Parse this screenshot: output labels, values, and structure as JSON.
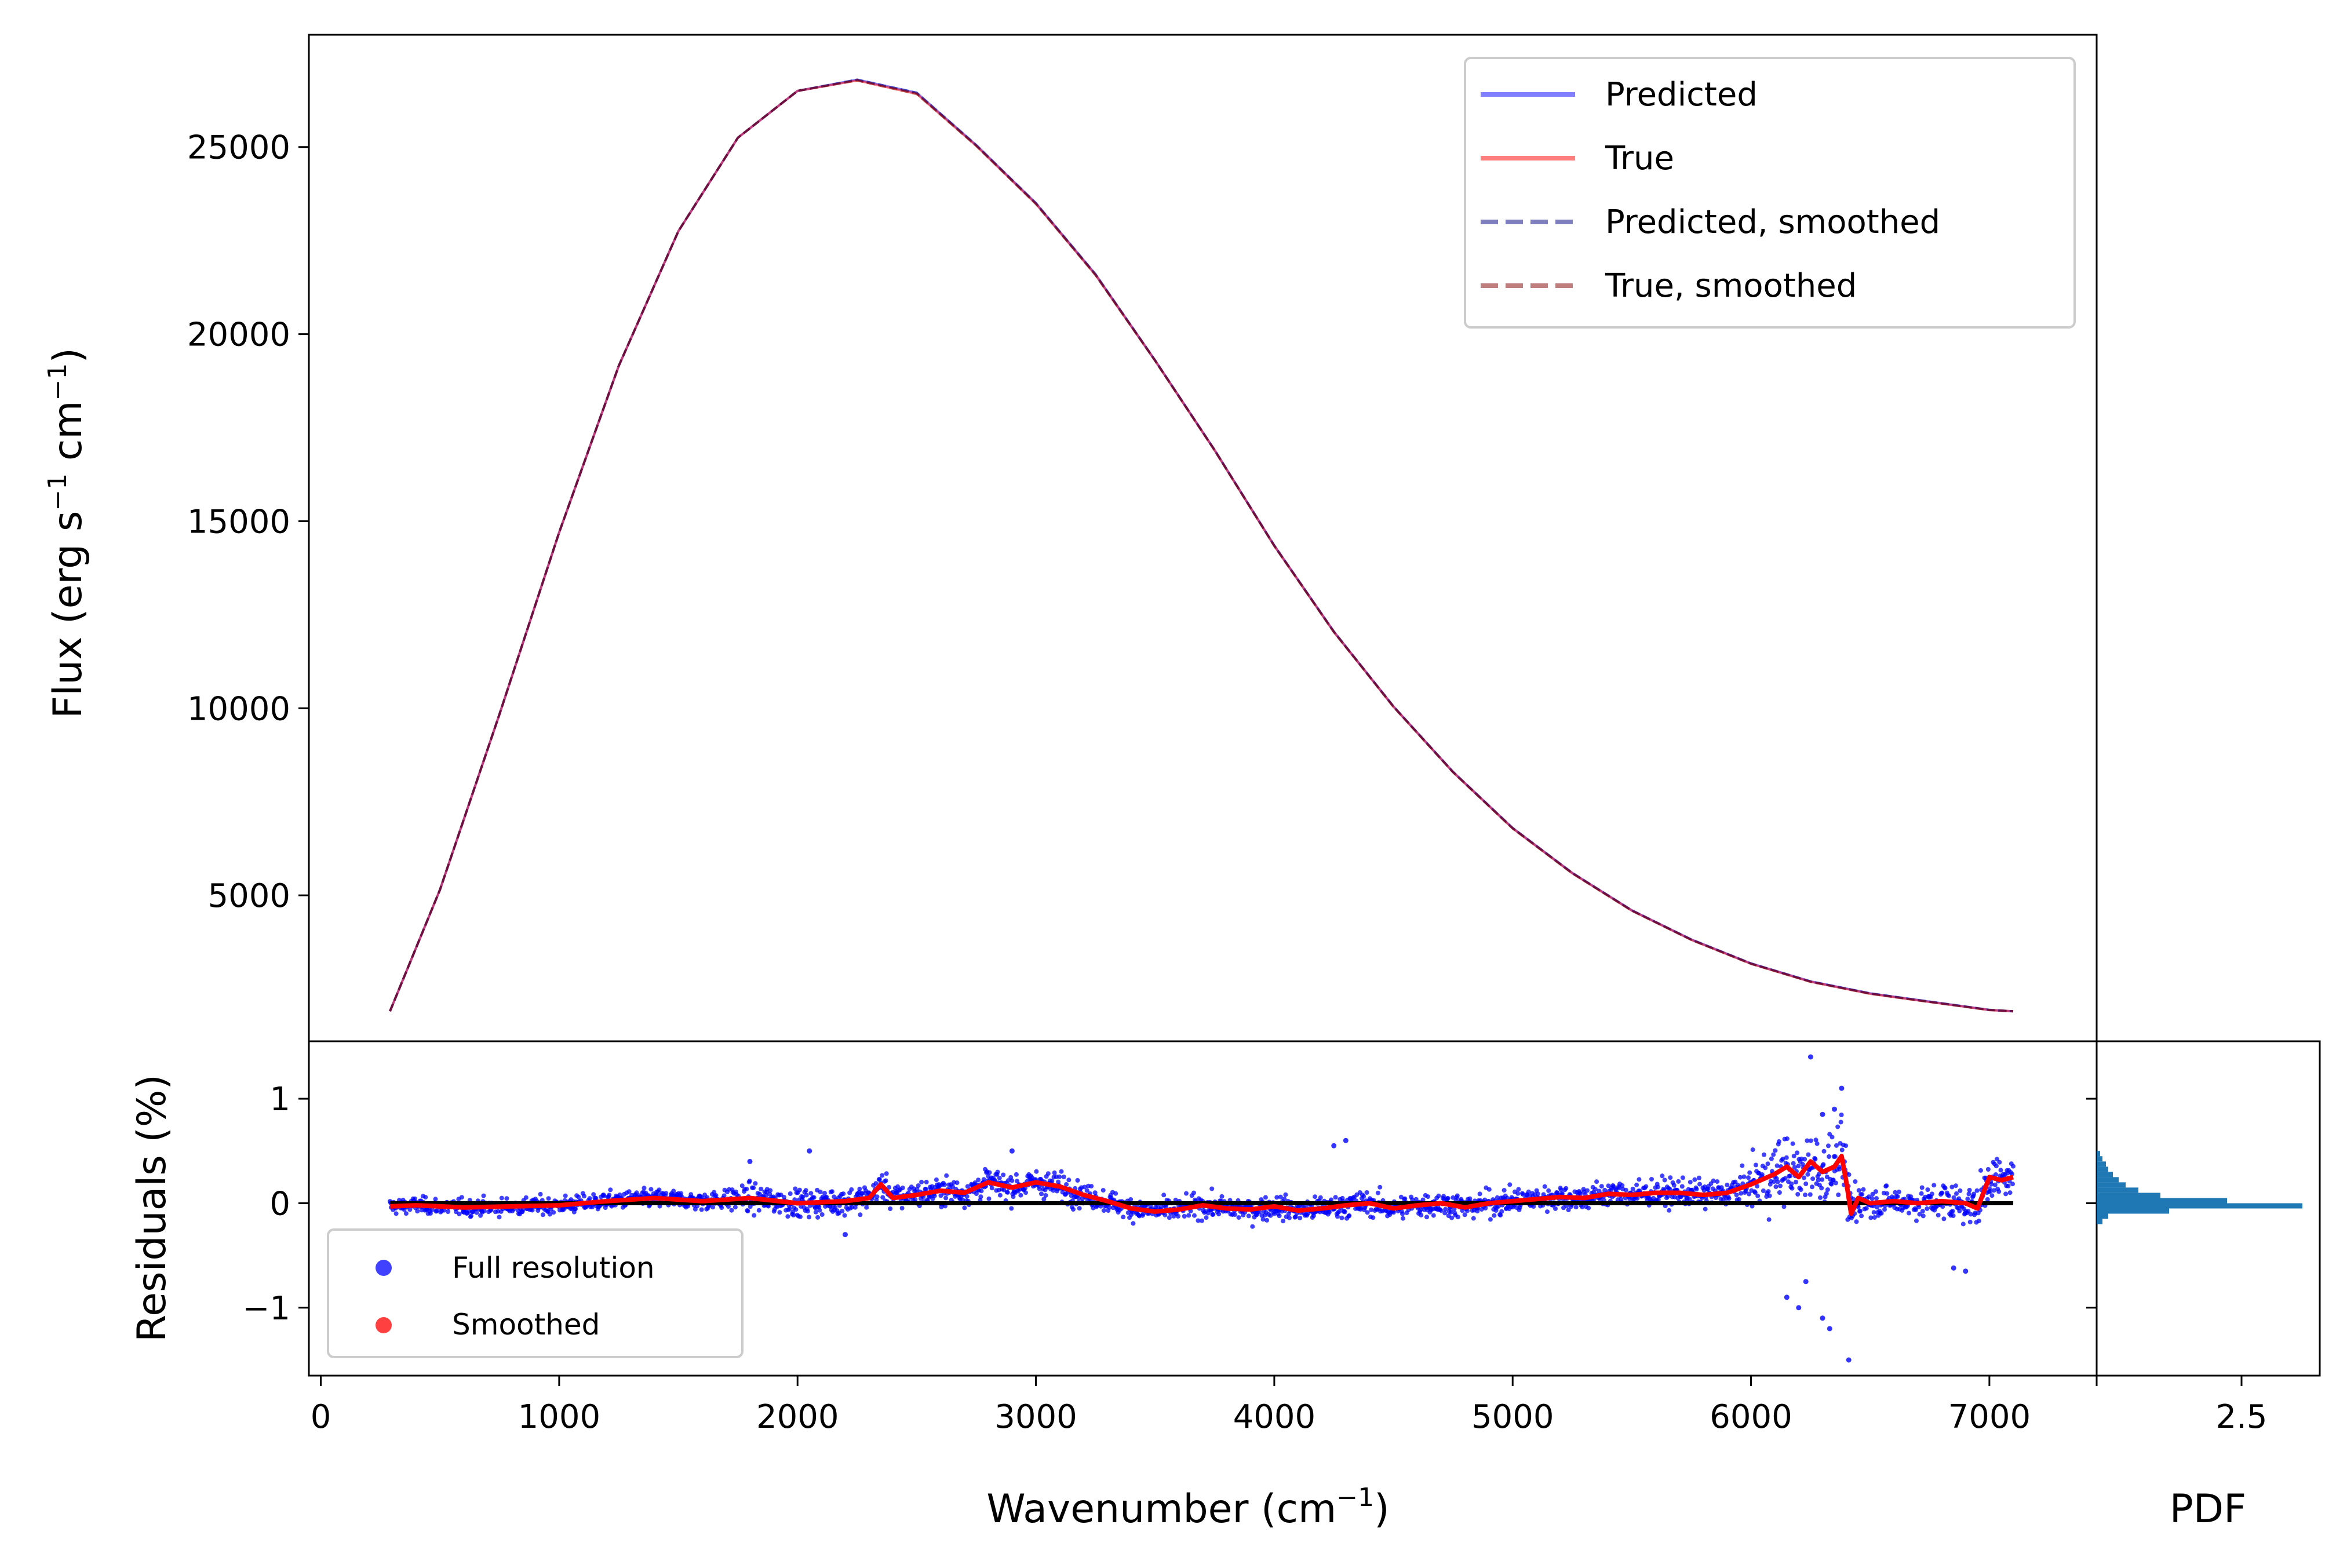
{
  "chart_data": [
    {
      "type": "line",
      "panel": "spectrum",
      "ylabel": "Flux (erg s⁻¹ cm⁻¹)",
      "ylabel_parts": {
        "a": "Flux (erg s",
        "sup1": "−1",
        "b": " cm",
        "sup2": "−1",
        "c": ")"
      },
      "xlim": [
        -50,
        7450
      ],
      "ylim": [
        1100,
        28000
      ],
      "yticks": [
        5000,
        10000,
        15000,
        20000,
        25000
      ],
      "ytick_labels": [
        "5000",
        "10000",
        "15000",
        "20000",
        "25000"
      ],
      "x": [
        290,
        500,
        750,
        1000,
        1250,
        1500,
        1750,
        2000,
        2250,
        2500,
        2750,
        3000,
        3250,
        3500,
        3750,
        4000,
        4250,
        4500,
        4750,
        5000,
        5250,
        5500,
        5750,
        6000,
        6250,
        6500,
        6750,
        7000,
        7100
      ],
      "series": [
        {
          "name": "Predicted",
          "color": "#0000ff",
          "alpha": 0.5,
          "dash": "solid",
          "values": [
            1900,
            5150,
            9850,
            14700,
            19150,
            22750,
            25250,
            26500,
            26800,
            26450,
            25050,
            23500,
            21600,
            19300,
            16900,
            14350,
            12050,
            10050,
            8300,
            6800,
            5600,
            4600,
            3820,
            3180,
            2700,
            2380,
            2160,
            1940,
            1900
          ]
        },
        {
          "name": "True",
          "color": "#ff0000",
          "alpha": 0.5,
          "dash": "solid",
          "values": [
            1900,
            5150,
            9850,
            14700,
            19150,
            22750,
            25250,
            26500,
            26780,
            26420,
            25030,
            23480,
            21580,
            19290,
            16890,
            14340,
            12040,
            10040,
            8290,
            6790,
            5590,
            4590,
            3810,
            3170,
            2690,
            2370,
            2150,
            1935,
            1900
          ]
        },
        {
          "name": "Predicted, smoothed",
          "color": "#000080",
          "alpha": 0.5,
          "dash": "dashed",
          "values": [
            1900,
            5150,
            9850,
            14700,
            19150,
            22750,
            25250,
            26500,
            26800,
            26450,
            25050,
            23500,
            21600,
            19300,
            16900,
            14350,
            12050,
            10050,
            8300,
            6800,
            5600,
            4600,
            3820,
            3180,
            2700,
            2380,
            2160,
            1940,
            1900
          ]
        },
        {
          "name": "True, smoothed",
          "color": "#800000",
          "alpha": 0.5,
          "dash": "dashed",
          "values": [
            1900,
            5150,
            9850,
            14700,
            19150,
            22750,
            25250,
            26500,
            26780,
            26420,
            25030,
            23480,
            21580,
            19290,
            16890,
            14340,
            12040,
            10040,
            8290,
            6790,
            5590,
            4590,
            3810,
            3170,
            2690,
            2370,
            2150,
            1935,
            1900
          ]
        }
      ],
      "legend": [
        "Predicted",
        "True",
        "Predicted, smoothed",
        "True, smoothed"
      ],
      "legend_loc": "upper right"
    },
    {
      "type": "scatter",
      "panel": "residuals",
      "xlabel": "Wavenumber (cm⁻¹)",
      "xlabel_parts": {
        "a": "Wavenumber (cm",
        "sup": "−1",
        "b": ")"
      },
      "ylabel": "Residuals (%)",
      "xlim": [
        -50,
        7450
      ],
      "ylim": [
        -1.65,
        1.55
      ],
      "xticks": [
        0,
        1000,
        2000,
        3000,
        4000,
        5000,
        6000,
        7000
      ],
      "xtick_labels": [
        "0",
        "1000",
        "2000",
        "3000",
        "4000",
        "5000",
        "6000",
        "7000"
      ],
      "yticks": [
        -1,
        0,
        1
      ],
      "ytick_labels": [
        "−1",
        "0",
        "1"
      ],
      "zero_line": {
        "x": [
          290,
          7100
        ],
        "y": 0,
        "color": "#000000"
      },
      "smoothed": {
        "name": "Smoothed",
        "color": "#ff0000",
        "x": [
          290,
          400,
          600,
          800,
          1000,
          1200,
          1400,
          1600,
          1800,
          2000,
          2200,
          2300,
          2350,
          2400,
          2500,
          2600,
          2700,
          2800,
          2900,
          3000,
          3100,
          3200,
          3300,
          3400,
          3500,
          3600,
          3700,
          3800,
          3900,
          4000,
          4100,
          4200,
          4300,
          4400,
          4500,
          4600,
          4700,
          4800,
          4900,
          5000,
          5100,
          5200,
          5300,
          5400,
          5500,
          5600,
          5700,
          5800,
          5900,
          6000,
          6100,
          6150,
          6200,
          6250,
          6300,
          6350,
          6380,
          6400,
          6420,
          6450,
          6500,
          6600,
          6700,
          6800,
          6900,
          6950,
          7000,
          7050,
          7100
        ],
        "values": [
          -0.03,
          -0.02,
          -0.04,
          -0.03,
          -0.02,
          0.02,
          0.05,
          0.02,
          0.05,
          0.0,
          0.02,
          0.05,
          0.18,
          0.05,
          0.08,
          0.12,
          0.1,
          0.2,
          0.15,
          0.2,
          0.16,
          0.08,
          0.02,
          -0.05,
          -0.08,
          -0.06,
          -0.02,
          -0.05,
          -0.06,
          -0.03,
          -0.07,
          -0.05,
          -0.02,
          0.0,
          -0.05,
          -0.02,
          0.0,
          -0.04,
          0.0,
          0.02,
          0.04,
          0.06,
          0.05,
          0.09,
          0.08,
          0.1,
          0.1,
          0.08,
          0.1,
          0.18,
          0.28,
          0.35,
          0.25,
          0.4,
          0.3,
          0.35,
          0.45,
          0.2,
          -0.1,
          0.05,
          0.0,
          0.02,
          0.0,
          0.02,
          0.0,
          -0.05,
          0.25,
          0.22,
          0.25
        ]
      },
      "full_resolution": {
        "name": "Full resolution",
        "color": "#0000ff",
        "note": "dense cloud of ~3000 points scattered around the smoothed curve; spread widens near 6000-6450 cm⁻¹",
        "outliers": [
          [
            6250,
            1.4
          ],
          [
            6380,
            1.1
          ],
          [
            6410,
            -1.5
          ],
          [
            6300,
            -1.1
          ],
          [
            6230,
            -0.75
          ],
          [
            6200,
            -1.0
          ],
          [
            6350,
            0.9
          ],
          [
            6300,
            0.85
          ],
          [
            6900,
            -0.65
          ],
          [
            6850,
            -0.62
          ],
          [
            4300,
            0.6
          ],
          [
            4250,
            0.55
          ],
          [
            2050,
            0.5
          ],
          [
            2900,
            0.5
          ],
          [
            1800,
            0.4
          ],
          [
            2200,
            -0.3
          ],
          [
            6150,
            -0.9
          ],
          [
            6330,
            -1.2
          ]
        ]
      },
      "legend": [
        "Full resolution",
        "Smoothed"
      ],
      "legend_loc": "lower left"
    },
    {
      "type": "bar",
      "panel": "residual-histogram",
      "orientation": "horizontal",
      "xlabel": "PDF",
      "xlim": [
        0,
        3.85
      ],
      "xticks": [
        2.5
      ],
      "xtick_labels": [
        "2.5"
      ],
      "color": "#1f77b4",
      "bin_edges": [
        -0.2,
        -0.15,
        -0.1,
        -0.05,
        0.0,
        0.05,
        0.1,
        0.15,
        0.2,
        0.25,
        0.3,
        0.35,
        0.4,
        0.45,
        0.5
      ],
      "values": [
        0.1,
        0.2,
        1.25,
        3.55,
        2.25,
        1.1,
        0.72,
        0.5,
        0.38,
        0.28,
        0.2,
        0.16,
        0.1,
        0.06
      ]
    }
  ]
}
